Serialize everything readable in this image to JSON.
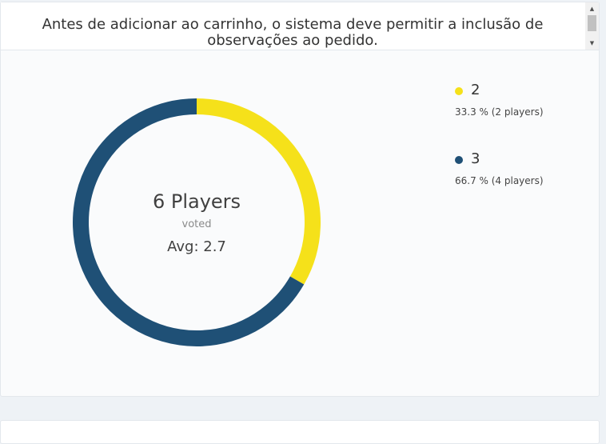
{
  "question": {
    "text": "Antes de adicionar ao carrinho, o sistema deve permitir a inclusão de observações ao pedido."
  },
  "summary": {
    "players_label": "6 Players",
    "voted_label": "voted",
    "avg_label": "Avg: 2.7"
  },
  "chart_data": {
    "type": "pie",
    "categories": [
      "2",
      "3"
    ],
    "values": [
      2,
      4
    ],
    "percentages": [
      33.3,
      66.7
    ],
    "colors": [
      "#f5e11a",
      "#1f5076"
    ],
    "donut": true,
    "title": "",
    "legend_position": "right"
  },
  "legend": [
    {
      "label": "2",
      "detail": "33.3 % (2 players)",
      "color": "#f5e11a"
    },
    {
      "label": "3",
      "detail": "66.7 % (4 players)",
      "color": "#1f5076"
    }
  ],
  "scrollbar": {
    "up_icon": "scroll-up-arrow-icon",
    "down_icon": "scroll-down-arrow-icon"
  }
}
